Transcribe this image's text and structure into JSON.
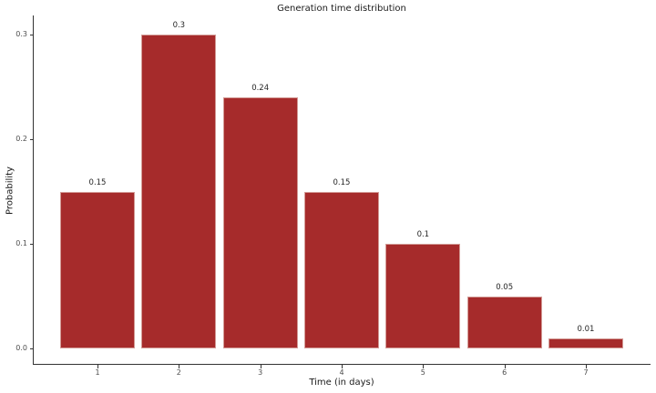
{
  "chart_data": {
    "type": "bar",
    "title": "Generation time distribution",
    "xlabel": "Time (in days)",
    "ylabel": "Probability",
    "categories": [
      "1",
      "2",
      "3",
      "4",
      "5",
      "6",
      "7"
    ],
    "values": [
      0.15,
      0.3,
      0.24,
      0.15,
      0.1,
      0.05,
      0.01
    ],
    "bar_labels": [
      "0.15",
      "0.3",
      "0.24",
      "0.15",
      "0.1",
      "0.05",
      "0.01"
    ],
    "ytick_values": [
      0.0,
      0.1,
      0.2,
      0.3
    ],
    "ytick_labels": [
      "0.0",
      "0.1",
      "0.2",
      "0.3"
    ],
    "ylim": [
      0,
      0.3
    ],
    "bar_color": "#a62b2b",
    "axis_color": "#333333",
    "grid": false,
    "legend_position": "none",
    "background_color": "#ffffff"
  }
}
